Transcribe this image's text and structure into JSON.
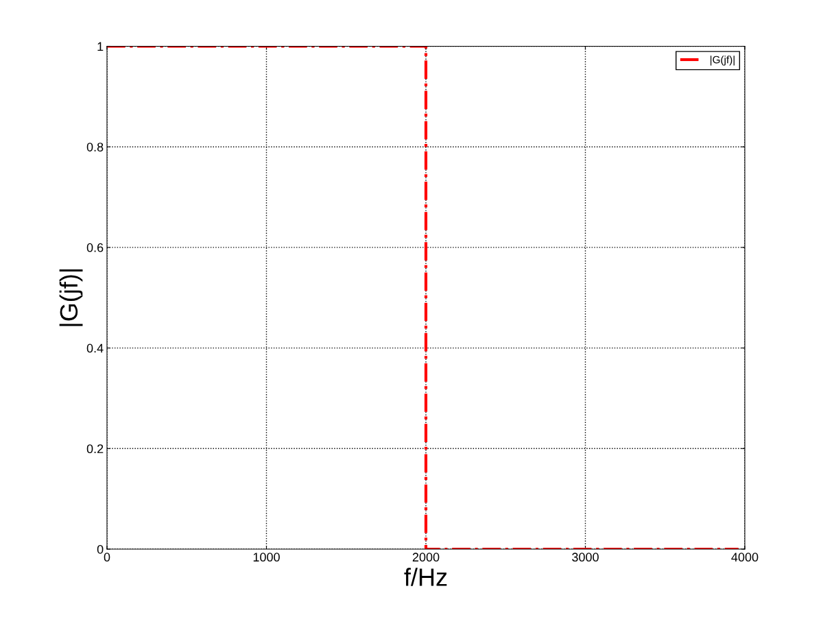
{
  "chart_data": {
    "type": "line",
    "xlabel": "f/Hz",
    "ylabel": "|G(jf)|",
    "series": [
      {
        "name": "|G(jf)|",
        "color": "#ff0000",
        "x": [
          0,
          2000,
          2000,
          3960
        ],
        "values": [
          1,
          1,
          0,
          0
        ]
      }
    ],
    "xlim": [
      0,
      4000
    ],
    "xticks": [
      0,
      1000,
      2000,
      3000,
      4000
    ],
    "ylim": [
      0,
      1
    ],
    "yticks": [
      0,
      0.2,
      0.4,
      0.6,
      0.8,
      1
    ],
    "grid": true,
    "legend": "top right",
    "line_style": "dashdot"
  }
}
